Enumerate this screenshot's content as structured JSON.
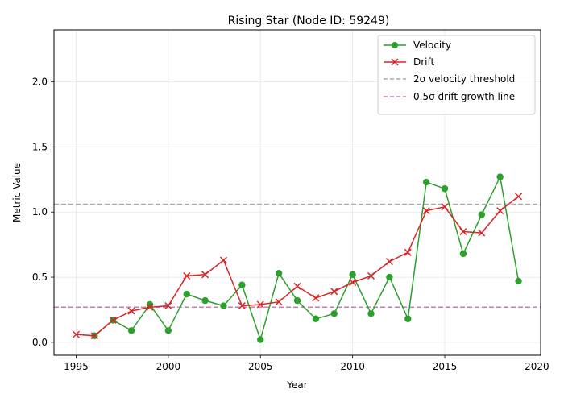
{
  "chart_data": {
    "type": "line",
    "title": "Rising Star (Node ID: 59249)",
    "xlabel": "Year",
    "ylabel": "Metric Value",
    "xlim": [
      1993.8,
      2020.2
    ],
    "ylim": [
      -0.1,
      2.4
    ],
    "xticks": [
      1995,
      2000,
      2005,
      2010,
      2015,
      2020
    ],
    "yticks": [
      0.0,
      0.5,
      1.0,
      1.5,
      2.0
    ],
    "xtick_labels": [
      "1995",
      "2000",
      "2005",
      "2010",
      "2015",
      "2020"
    ],
    "ytick_labels": [
      "0.0",
      "0.5",
      "1.0",
      "1.5",
      "2.0"
    ],
    "grid": true,
    "legend_position": "top-right",
    "series": [
      {
        "name": "Velocity",
        "color": "#2ca02c",
        "marker": "circle",
        "x": [
          1996,
          1997,
          1998,
          1999,
          2000,
          2001,
          2002,
          2003,
          2004,
          2005,
          2006,
          2007,
          2008,
          2009,
          2010,
          2011,
          2012,
          2013,
          2014,
          2015,
          2016,
          2017,
          2018,
          2019
        ],
        "values": [
          0.05,
          0.17,
          0.09,
          0.29,
          0.09,
          0.37,
          0.32,
          0.28,
          0.44,
          0.02,
          0.53,
          0.32,
          0.18,
          0.22,
          0.52,
          0.22,
          0.5,
          0.18,
          1.23,
          1.18,
          0.68,
          0.98,
          1.27,
          0.47
        ]
      },
      {
        "name": "Drift",
        "color": "#d62728",
        "marker": "x",
        "x": [
          1995,
          1996,
          1997,
          1998,
          1999,
          2000,
          2001,
          2002,
          2003,
          2004,
          2005,
          2006,
          2007,
          2008,
          2009,
          2010,
          2011,
          2012,
          2013,
          2014,
          2015,
          2016,
          2017,
          2018,
          2019
        ],
        "values": [
          0.06,
          0.05,
          0.17,
          0.24,
          0.27,
          0.28,
          0.51,
          0.52,
          0.63,
          0.28,
          0.29,
          0.31,
          0.43,
          0.34,
          0.39,
          0.46,
          0.51,
          0.62,
          0.69,
          1.01,
          1.04,
          0.85,
          0.84,
          1.01,
          1.12
        ]
      }
    ],
    "reference_lines": [
      {
        "name": "2σ velocity threshold",
        "y": 1.06,
        "color": "#aaaaaa",
        "style": "dashed"
      },
      {
        "name": "0.5σ drift growth line",
        "y": 0.27,
        "color": "#c77cbb",
        "style": "dashed"
      }
    ]
  }
}
